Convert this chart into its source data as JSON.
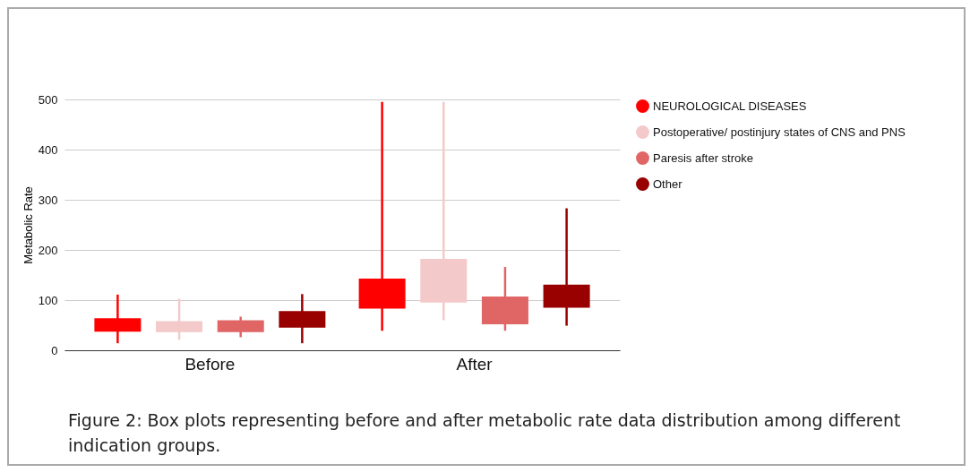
{
  "chart_data": {
    "type": "box",
    "ylabel": "Metabolic Rate",
    "categories": [
      "Before",
      "After"
    ],
    "ylim": [
      0,
      500
    ],
    "yticks": [
      0,
      100,
      200,
      300,
      400,
      500
    ],
    "grid": "y",
    "legend": "right",
    "annotations": [
      "Figure 2: Box plots representing before and after metabolic rate data distribution among different indication groups."
    ],
    "series": [
      {
        "name": "NEUROLOGICAL DISEASES",
        "color": "#ff0000",
        "boxes": [
          {
            "low": 14,
            "q1": 37,
            "q3": 64,
            "high": 111
          },
          {
            "low": 39,
            "q1": 83,
            "q3": 143,
            "high": 495
          }
        ]
      },
      {
        "name": "Postoperative/ postinjury states of CNS and PNS",
        "color": "#f4c9c9",
        "boxes": [
          {
            "low": 21,
            "q1": 36,
            "q3": 58,
            "high": 103
          },
          {
            "low": 60,
            "q1": 95,
            "q3": 182,
            "high": 495
          }
        ]
      },
      {
        "name": "Paresis after stroke",
        "color": "#e06666",
        "boxes": [
          {
            "low": 26,
            "q1": 36,
            "q3": 60,
            "high": 67
          },
          {
            "low": 39,
            "q1": 52,
            "q3": 107,
            "high": 166
          }
        ]
      },
      {
        "name": "Other",
        "color": "#990000",
        "boxes": [
          {
            "low": 14,
            "q1": 45,
            "q3": 78,
            "high": 112
          },
          {
            "low": 49,
            "q1": 85,
            "q3": 131,
            "high": 283
          }
        ]
      }
    ]
  }
}
